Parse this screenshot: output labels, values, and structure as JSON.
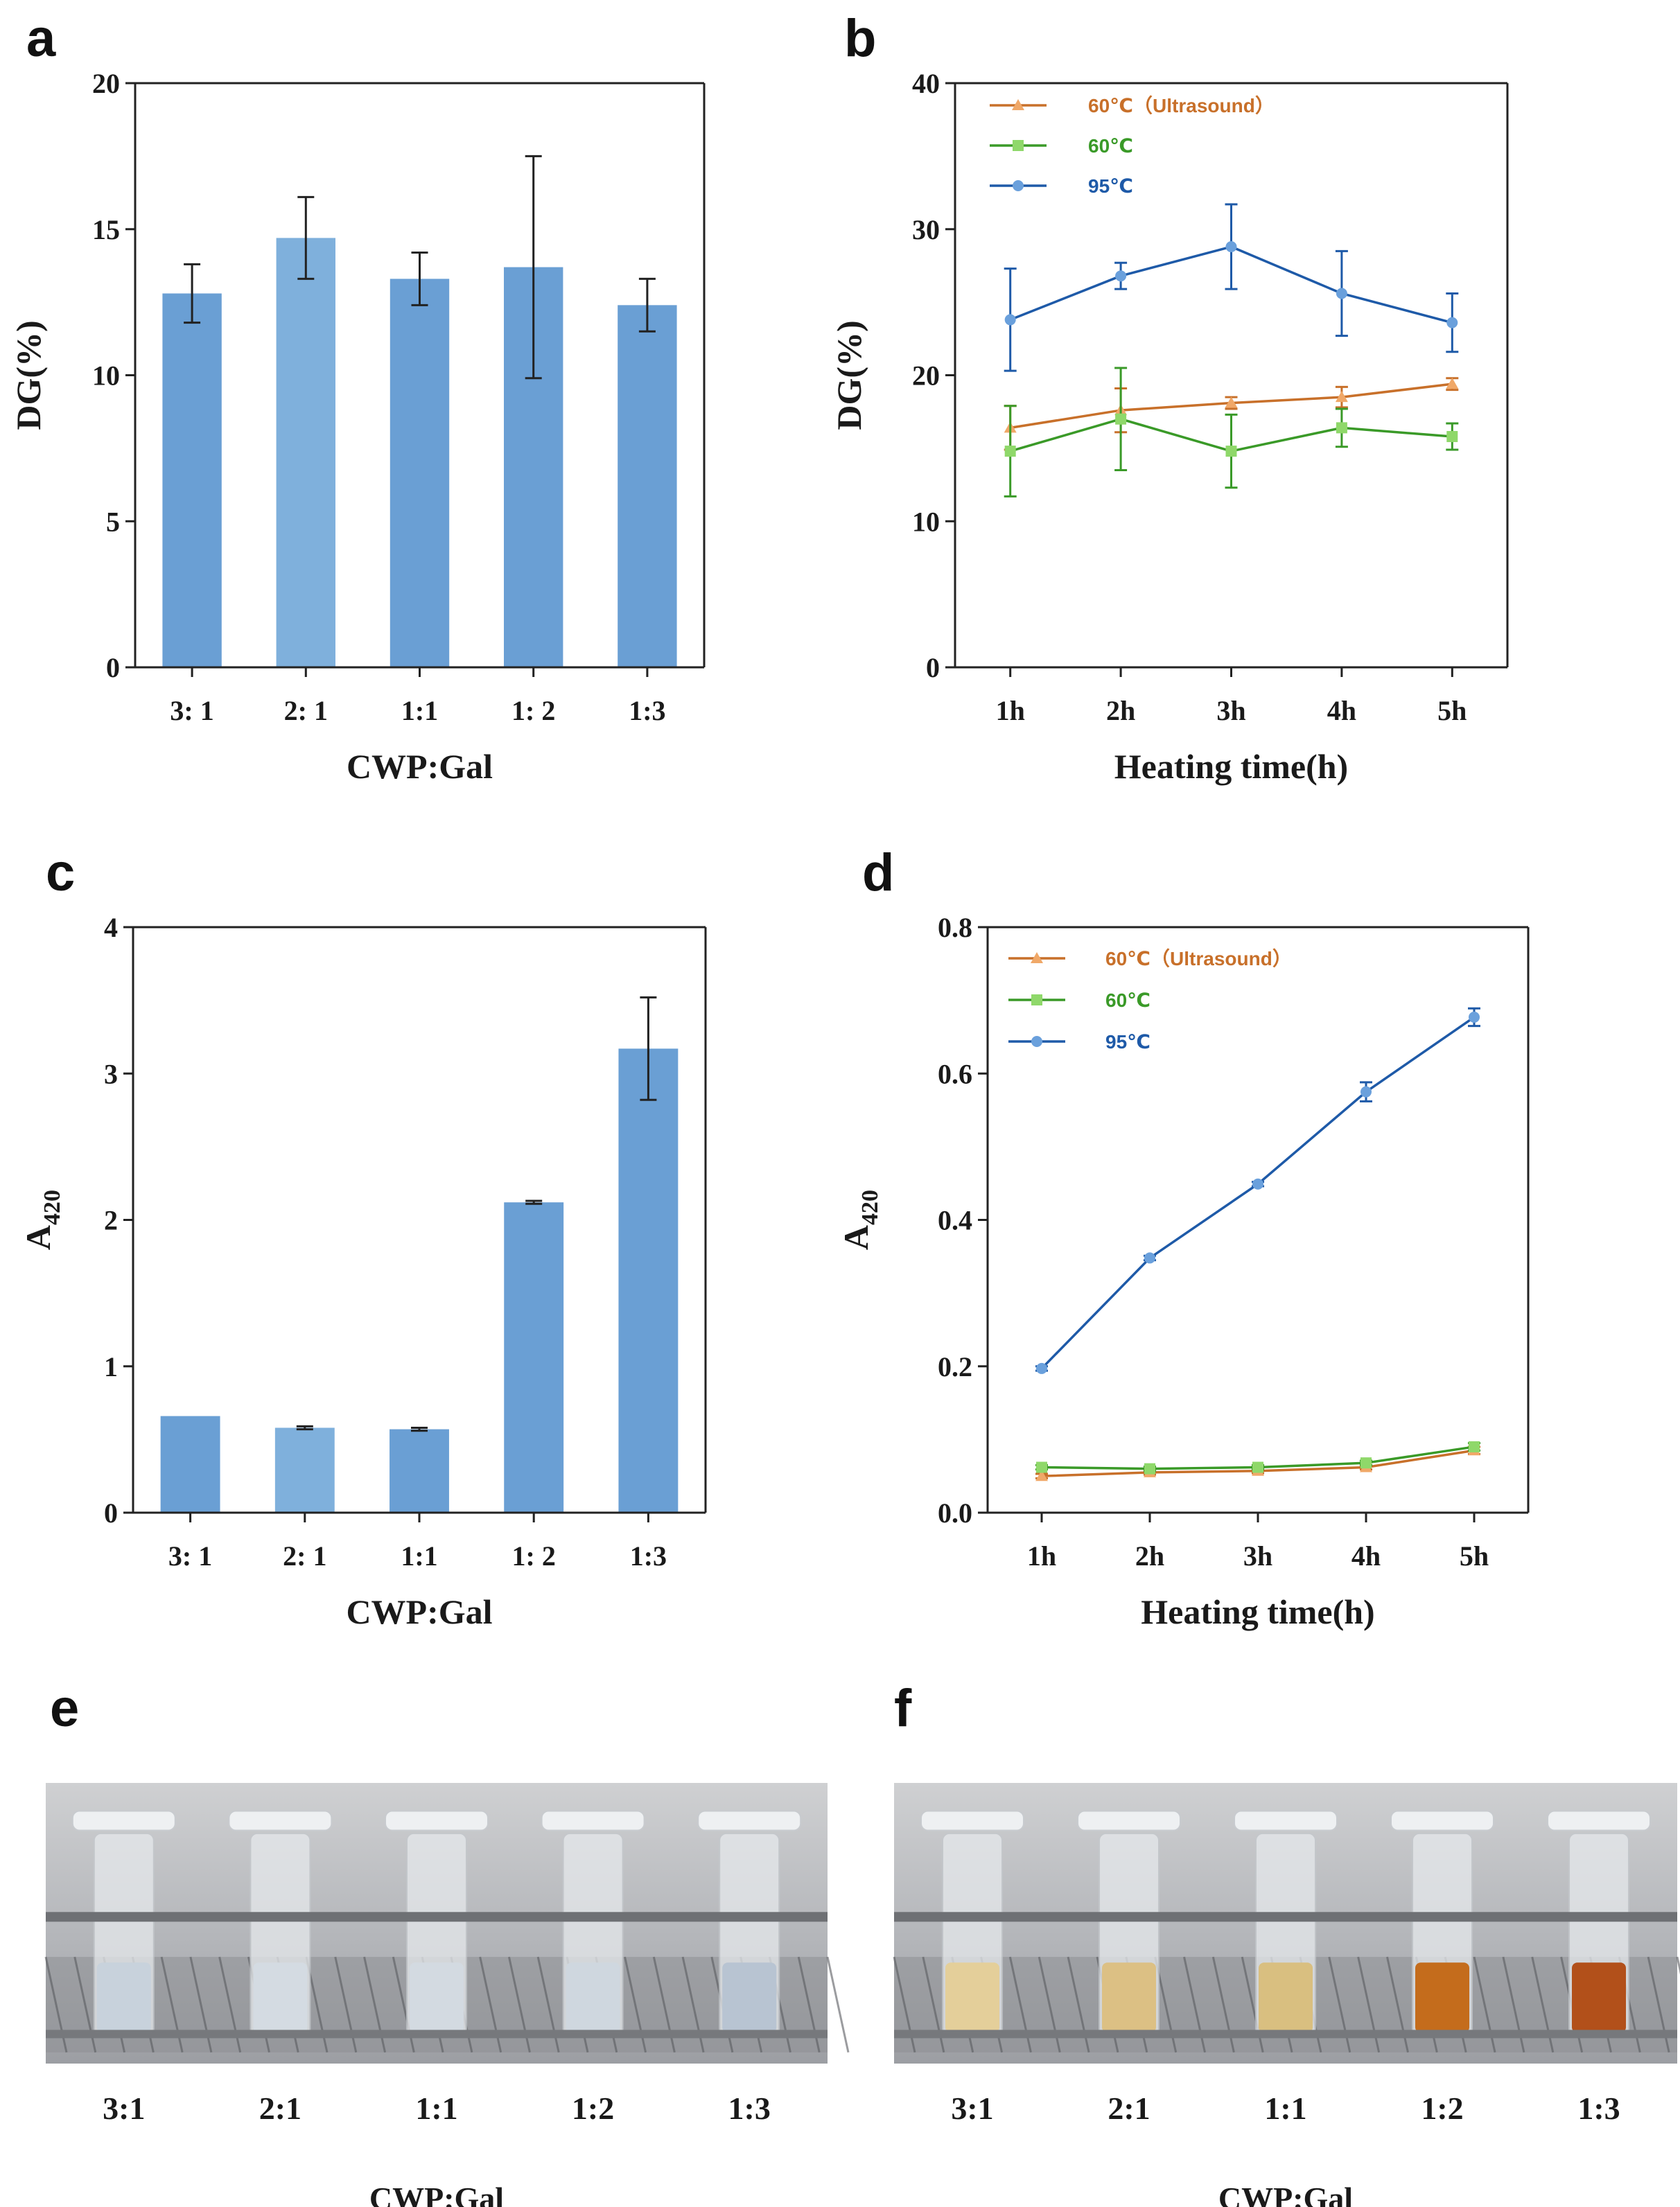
{
  "panels": {
    "a": "a",
    "b": "b",
    "c": "c",
    "d": "d",
    "e": "e",
    "f": "f"
  },
  "colors": {
    "bar_dark": "#6a9fd4",
    "bar_light": "#7fb0dc",
    "ultrasound": "#c8702a",
    "ultrasound_marker": "#f0a868",
    "c60": "#3a9a28",
    "c60_marker": "#8fd86a",
    "c95": "#1e5aa8",
    "c95_marker": "#6aa0dc"
  },
  "chart_data": [
    {
      "id": "a",
      "type": "bar",
      "categories": [
        "3: 1",
        "2: 1",
        "1:1",
        "1: 2",
        "1:3"
      ],
      "values": [
        12.8,
        14.7,
        13.3,
        13.7,
        12.4
      ],
      "errors": [
        1.0,
        1.4,
        0.9,
        3.8,
        0.9
      ],
      "xlabel": "CWP:Gal",
      "ylabel": "DG(%)",
      "ylim": [
        0,
        20
      ],
      "yticks": [
        0,
        5,
        10,
        15,
        20
      ],
      "ytick_labels": [
        "0",
        "5",
        "10",
        "15",
        "20"
      ]
    },
    {
      "id": "b",
      "type": "line",
      "categories": [
        "1h",
        "2h",
        "3h",
        "4h",
        "5h"
      ],
      "series": [
        {
          "name": "60℃（Ultrasound）",
          "color_key": "ultrasound",
          "marker": "triangle",
          "values": [
            16.4,
            17.6,
            18.1,
            18.5,
            19.4
          ],
          "errors": [
            1.5,
            1.5,
            0.4,
            0.7,
            0.4
          ]
        },
        {
          "name": "60℃",
          "color_key": "c60",
          "marker": "square",
          "values": [
            14.8,
            17.0,
            14.8,
            16.4,
            15.8
          ],
          "errors": [
            3.1,
            3.5,
            2.5,
            1.3,
            0.9
          ]
        },
        {
          "name": "95℃",
          "color_key": "c95",
          "marker": "circle",
          "values": [
            23.8,
            26.8,
            28.8,
            25.6,
            23.6
          ],
          "errors": [
            3.5,
            0.9,
            2.9,
            2.9,
            2.0
          ]
        }
      ],
      "xlabel": "Heating time(h)",
      "ylabel": "DG(%)",
      "ylim": [
        0,
        40
      ],
      "yticks": [
        0,
        10,
        20,
        30,
        40
      ],
      "ytick_labels": [
        "0",
        "10",
        "20",
        "30",
        "40"
      ],
      "legend_position": "top-left"
    },
    {
      "id": "c",
      "type": "bar",
      "categories": [
        "3: 1",
        "2: 1",
        "1:1",
        "1: 2",
        "1:3"
      ],
      "values": [
        0.66,
        0.58,
        0.57,
        2.12,
        3.17
      ],
      "errors": [
        0.0,
        0.01,
        0.01,
        0.01,
        0.35
      ],
      "xlabel": "CWP:Gal",
      "ylabel": "A",
      "ylabel_sub": "420",
      "ylim": [
        0,
        4
      ],
      "yticks": [
        0,
        1,
        2,
        3,
        4
      ],
      "ytick_labels": [
        "0",
        "1",
        "2",
        "3",
        "4"
      ]
    },
    {
      "id": "d",
      "type": "line",
      "categories": [
        "1h",
        "2h",
        "3h",
        "4h",
        "5h"
      ],
      "series": [
        {
          "name": "60℃（Ultrasound）",
          "color_key": "ultrasound",
          "marker": "triangle",
          "values": [
            0.05,
            0.055,
            0.057,
            0.062,
            0.085
          ],
          "errors": [
            0.003,
            0.003,
            0.003,
            0.003,
            0.005
          ]
        },
        {
          "name": "60℃",
          "color_key": "c60",
          "marker": "square",
          "values": [
            0.062,
            0.06,
            0.062,
            0.068,
            0.09
          ],
          "errors": [
            0.003,
            0.003,
            0.003,
            0.003,
            0.005
          ]
        },
        {
          "name": "95℃",
          "color_key": "c95",
          "marker": "circle",
          "values": [
            0.197,
            0.348,
            0.449,
            0.575,
            0.677
          ],
          "errors": [
            0.003,
            0.003,
            0.003,
            0.013,
            0.012
          ]
        }
      ],
      "xlabel": "Heating time(h)",
      "ylabel": "A",
      "ylabel_sub": "420",
      "ylim": [
        0,
        0.8
      ],
      "yticks": [
        0,
        0.2,
        0.4,
        0.6,
        0.8
      ],
      "ytick_labels": [
        "0.0",
        "0.2",
        "0.4",
        "0.6",
        "0.8"
      ],
      "legend_position": "top-left"
    }
  ],
  "photos": [
    {
      "id": "e",
      "labels": [
        "3:1",
        "2:1",
        "1:1",
        "1:2",
        "1:3"
      ],
      "caption": "CWP:Gal",
      "liquid_colors": [
        "#c8d2dc",
        "#d4dbe2",
        "#d3dae1",
        "#cfd7df",
        "#b8c4d2"
      ]
    },
    {
      "id": "f",
      "labels": [
        "3:1",
        "2:1",
        "1:1",
        "1:2",
        "1:3"
      ],
      "caption": "CWP:Gal",
      "liquid_colors": [
        "#e4cf9a",
        "#dcc084",
        "#d9bf80",
        "#c46c1c",
        "#b2501a"
      ]
    }
  ]
}
